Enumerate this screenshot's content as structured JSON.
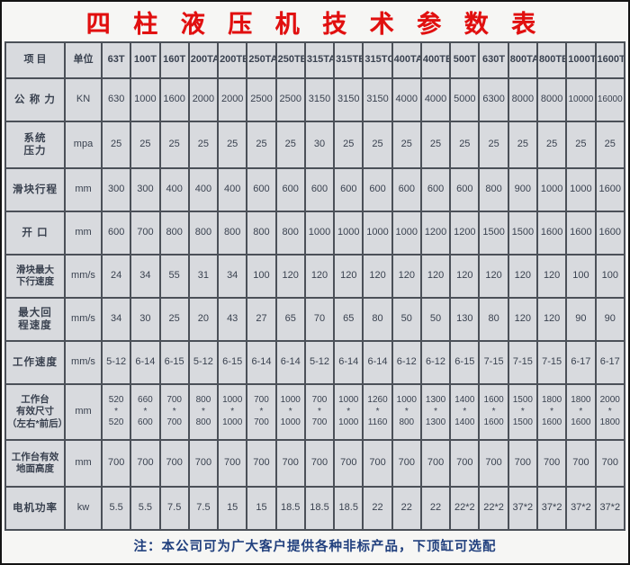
{
  "title": "四 柱 液 压 机 技 术 参 数 表",
  "note": "注：本公司可为广大客户提供各种非标产品，下顶缸可选配",
  "colors": {
    "title_red": "#e10f0f",
    "cell_background": "#d8dade",
    "grid_border": "#4b5058",
    "cell_text": "#39414f",
    "note_blue": "#21407e"
  },
  "chart_data": {
    "type": "table",
    "title": "四 柱 液 压 机 技 术 参 数 表",
    "header": [
      "项  目",
      "单位",
      "63T",
      "100T",
      "160T",
      "200TA",
      "200TB",
      "250TA",
      "250TB",
      "315TA",
      "315TB",
      "315TC",
      "400TA",
      "400TB",
      "500T",
      "630T",
      "800TA",
      "800TB",
      "1000T",
      "1600T"
    ],
    "rows": [
      {
        "label": "公 称 力",
        "unit": "KN",
        "values": [
          "630",
          "1000",
          "1600",
          "2000",
          "2000",
          "2500",
          "2500",
          "3150",
          "3150",
          "3150",
          "4000",
          "4000",
          "5000",
          "6300",
          "8000",
          "8000",
          "10000",
          "16000"
        ]
      },
      {
        "label": "系统\n压力",
        "unit": "mpa",
        "values": [
          "25",
          "25",
          "25",
          "25",
          "25",
          "25",
          "25",
          "30",
          "25",
          "25",
          "25",
          "25",
          "25",
          "25",
          "25",
          "25",
          "25",
          "25"
        ]
      },
      {
        "label": "滑块行程",
        "unit": "mm",
        "values": [
          "300",
          "300",
          "400",
          "400",
          "400",
          "600",
          "600",
          "600",
          "600",
          "600",
          "600",
          "600",
          "600",
          "800",
          "900",
          "1000",
          "1000",
          "1600"
        ]
      },
      {
        "label": "开  口",
        "unit": "mm",
        "values": [
          "600",
          "700",
          "800",
          "800",
          "800",
          "800",
          "800",
          "1000",
          "1000",
          "1000",
          "1000",
          "1200",
          "1200",
          "1500",
          "1500",
          "1600",
          "1600",
          "1600"
        ]
      },
      {
        "label": "滑块最大\n下行速度",
        "unit": "mm/s",
        "values": [
          "24",
          "34",
          "55",
          "31",
          "34",
          "100",
          "120",
          "120",
          "120",
          "120",
          "120",
          "120",
          "120",
          "120",
          "120",
          "120",
          "100",
          "100"
        ]
      },
      {
        "label": "最大回\n程速度",
        "unit": "mm/s",
        "values": [
          "34",
          "30",
          "25",
          "20",
          "43",
          "27",
          "65",
          "70",
          "65",
          "80",
          "50",
          "50",
          "130",
          "80",
          "120",
          "120",
          "90",
          "90"
        ]
      },
      {
        "label": "工作速度",
        "unit": "mm/s",
        "values": [
          "5-12",
          "6-14",
          "6-15",
          "5-12",
          "6-15",
          "6-14",
          "6-14",
          "5-12",
          "6-14",
          "6-14",
          "6-12",
          "6-12",
          "6-15",
          "7-15",
          "7-15",
          "7-15",
          "6-17",
          "6-17"
        ]
      },
      {
        "label": "工作台\n有效尺寸\n（左右*前后）",
        "unit": "mm",
        "values": [
          "520\n*\n520",
          "660\n*\n600",
          "700\n*\n700",
          "800\n*\n800",
          "1000\n*\n1000",
          "700\n*\n700",
          "1000\n*\n1000",
          "700\n*\n700",
          "1000\n*\n1000",
          "1260\n*\n1160",
          "1000\n*\n800",
          "1300\n*\n1300",
          "1400\n*\n1400",
          "1600\n*\n1600",
          "1500\n*\n1500",
          "1800\n*\n1600",
          "1800\n*\n1600",
          "2000\n*\n1800"
        ]
      },
      {
        "label": "工作台有效\n地面高度",
        "unit": "mm",
        "values": [
          "700",
          "700",
          "700",
          "700",
          "700",
          "700",
          "700",
          "700",
          "700",
          "700",
          "700",
          "700",
          "700",
          "700",
          "700",
          "700",
          "700",
          "700"
        ]
      },
      {
        "label": "电机功率",
        "unit": "kw",
        "values": [
          "5.5",
          "5.5",
          "7.5",
          "7.5",
          "15",
          "15",
          "18.5",
          "18.5",
          "18.5",
          "22",
          "22",
          "22",
          "22*2",
          "22*2",
          "37*2",
          "37*2",
          "37*2",
          "37*2"
        ]
      }
    ]
  }
}
